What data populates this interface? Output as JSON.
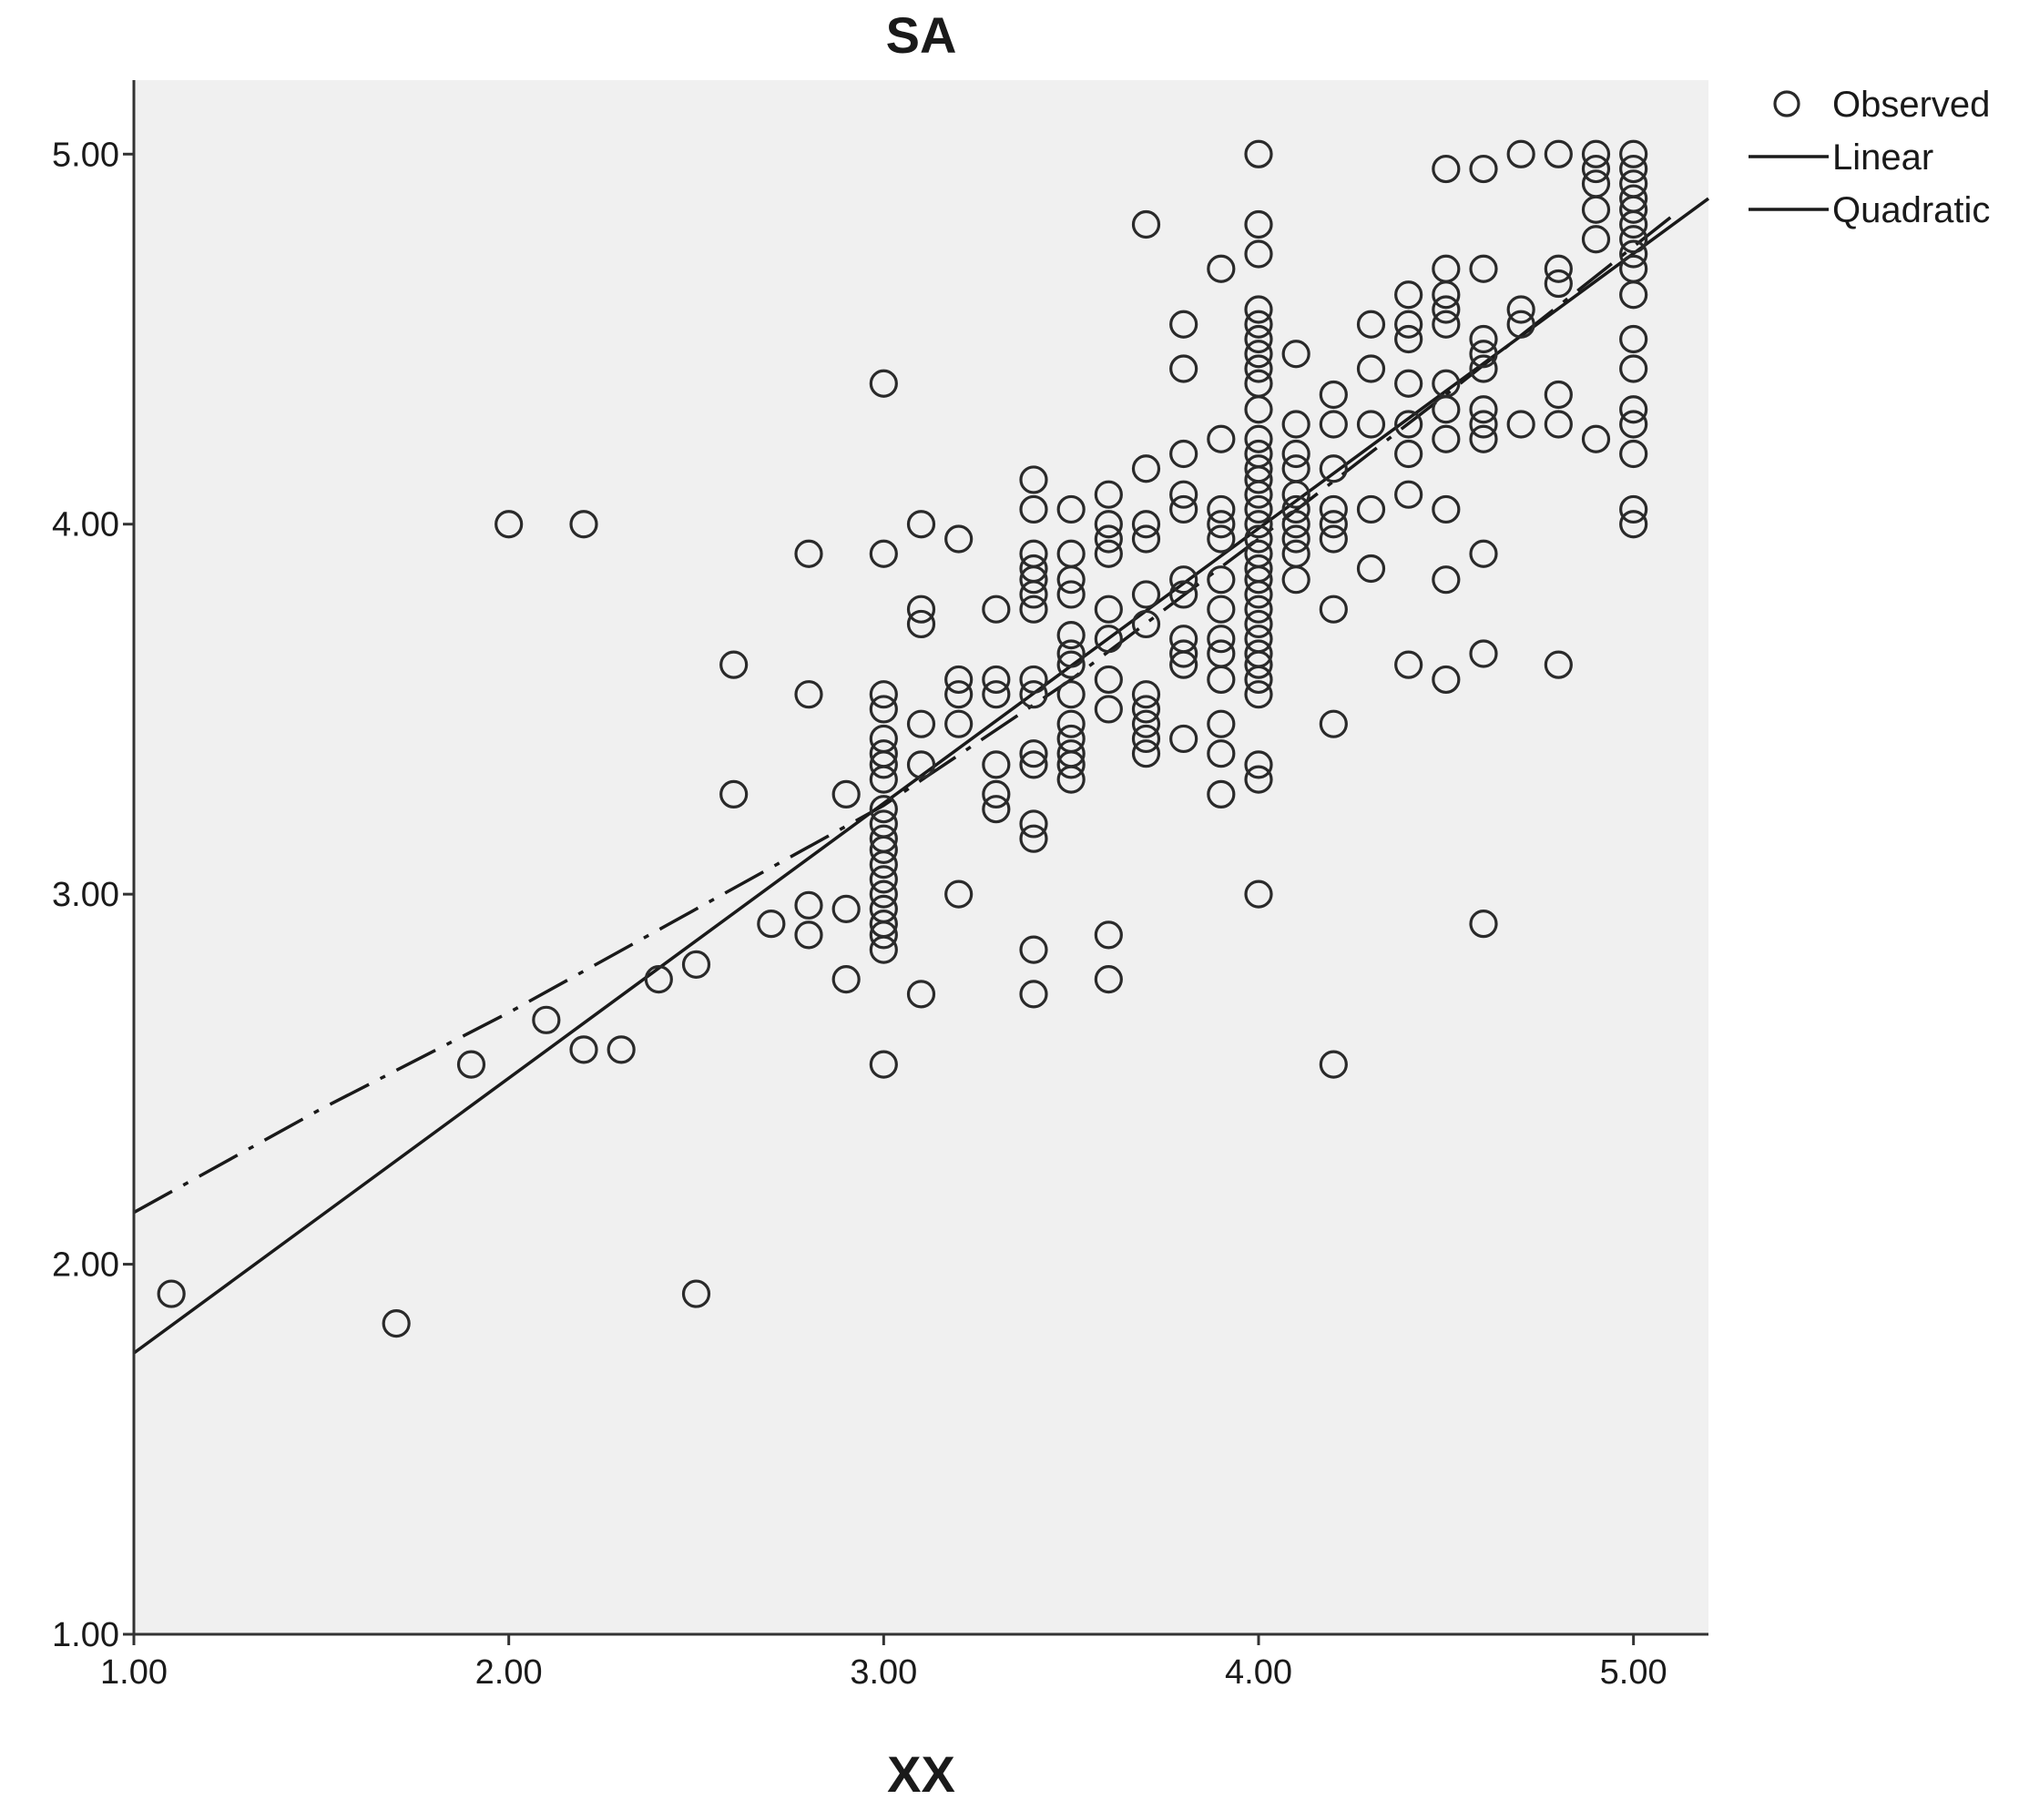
{
  "chart_data": {
    "type": "scatter",
    "title": "SA",
    "xlabel": "XX",
    "ylabel": "",
    "xlim": [
      1.0,
      5.2
    ],
    "ylim": [
      1.0,
      5.2
    ],
    "xticks": [
      "1.00",
      "2.00",
      "3.00",
      "4.00",
      "5.00"
    ],
    "yticks": [
      "1.00",
      "2.00",
      "3.00",
      "4.00",
      "5.00"
    ],
    "xtick_values": [
      1,
      2,
      3,
      4,
      5
    ],
    "ytick_values": [
      1,
      2,
      3,
      4,
      5
    ],
    "grid": false,
    "background_color": "#f0f0f0",
    "legend_position": "top-right, outside plot",
    "legend": [
      {
        "label": "Observed",
        "marker": "circle"
      },
      {
        "label": "Linear",
        "style": "solid"
      },
      {
        "label": "Quadratic",
        "style": "dash-dot"
      }
    ],
    "series": [
      {
        "name": "Observed",
        "points": [
          [
            1.1,
            1.92
          ],
          [
            1.7,
            1.84
          ],
          [
            1.9,
            2.54
          ],
          [
            2.0,
            4.0
          ],
          [
            2.1,
            2.66
          ],
          [
            2.2,
            2.58
          ],
          [
            2.2,
            4.0
          ],
          [
            2.3,
            2.58
          ],
          [
            2.4,
            2.77
          ],
          [
            2.5,
            2.81
          ],
          [
            2.5,
            1.92
          ],
          [
            2.6,
            3.62
          ],
          [
            2.6,
            3.27
          ],
          [
            2.7,
            2.92
          ],
          [
            2.8,
            2.97
          ],
          [
            2.8,
            2.89
          ],
          [
            2.8,
            3.54
          ],
          [
            2.8,
            3.92
          ],
          [
            2.9,
            3.27
          ],
          [
            2.9,
            2.96
          ],
          [
            2.9,
            2.77
          ],
          [
            3.0,
            4.38
          ],
          [
            3.0,
            3.92
          ],
          [
            3.0,
            3.54
          ],
          [
            3.0,
            3.5
          ],
          [
            3.0,
            3.42
          ],
          [
            3.0,
            3.38
          ],
          [
            3.0,
            3.35
          ],
          [
            3.0,
            3.31
          ],
          [
            3.0,
            3.23
          ],
          [
            3.0,
            3.19
          ],
          [
            3.0,
            3.15
          ],
          [
            3.0,
            3.12
          ],
          [
            3.0,
            3.08
          ],
          [
            3.0,
            3.04
          ],
          [
            3.0,
            3.0
          ],
          [
            3.0,
            2.96
          ],
          [
            3.0,
            2.92
          ],
          [
            3.0,
            2.89
          ],
          [
            3.0,
            2.85
          ],
          [
            3.0,
            2.54
          ],
          [
            3.1,
            4.0
          ],
          [
            3.1,
            3.77
          ],
          [
            3.1,
            3.73
          ],
          [
            3.1,
            3.46
          ],
          [
            3.1,
            3.35
          ],
          [
            3.1,
            2.73
          ],
          [
            3.2,
            3.96
          ],
          [
            3.2,
            3.58
          ],
          [
            3.2,
            3.54
          ],
          [
            3.2,
            3.46
          ],
          [
            3.2,
            3.0
          ],
          [
            3.3,
            3.77
          ],
          [
            3.3,
            3.58
          ],
          [
            3.3,
            3.54
          ],
          [
            3.3,
            3.35
          ],
          [
            3.3,
            3.27
          ],
          [
            3.3,
            3.23
          ],
          [
            3.4,
            4.12
          ],
          [
            3.4,
            4.04
          ],
          [
            3.4,
            3.92
          ],
          [
            3.4,
            3.88
          ],
          [
            3.4,
            3.85
          ],
          [
            3.4,
            3.81
          ],
          [
            3.4,
            3.77
          ],
          [
            3.4,
            3.58
          ],
          [
            3.4,
            3.54
          ],
          [
            3.4,
            3.38
          ],
          [
            3.4,
            3.35
          ],
          [
            3.4,
            3.19
          ],
          [
            3.4,
            3.15
          ],
          [
            3.4,
            2.85
          ],
          [
            3.4,
            2.73
          ],
          [
            3.5,
            4.04
          ],
          [
            3.5,
            3.92
          ],
          [
            3.5,
            3.85
          ],
          [
            3.5,
            3.81
          ],
          [
            3.5,
            3.7
          ],
          [
            3.5,
            3.65
          ],
          [
            3.5,
            3.62
          ],
          [
            3.5,
            3.54
          ],
          [
            3.5,
            3.46
          ],
          [
            3.5,
            3.42
          ],
          [
            3.5,
            3.38
          ],
          [
            3.5,
            3.35
          ],
          [
            3.5,
            3.31
          ],
          [
            3.6,
            4.08
          ],
          [
            3.6,
            4.0
          ],
          [
            3.6,
            3.96
          ],
          [
            3.6,
            3.92
          ],
          [
            3.6,
            3.77
          ],
          [
            3.6,
            3.69
          ],
          [
            3.6,
            3.58
          ],
          [
            3.6,
            3.5
          ],
          [
            3.6,
            2.89
          ],
          [
            3.6,
            2.77
          ],
          [
            3.7,
            4.81
          ],
          [
            3.7,
            4.15
          ],
          [
            3.7,
            4.0
          ],
          [
            3.7,
            3.96
          ],
          [
            3.7,
            3.81
          ],
          [
            3.7,
            3.73
          ],
          [
            3.7,
            3.54
          ],
          [
            3.7,
            3.5
          ],
          [
            3.7,
            3.46
          ],
          [
            3.7,
            3.42
          ],
          [
            3.7,
            3.38
          ],
          [
            3.8,
            4.54
          ],
          [
            3.8,
            4.42
          ],
          [
            3.8,
            4.19
          ],
          [
            3.8,
            4.08
          ],
          [
            3.8,
            4.04
          ],
          [
            3.8,
            3.85
          ],
          [
            3.8,
            3.81
          ],
          [
            3.8,
            3.69
          ],
          [
            3.8,
            3.65
          ],
          [
            3.8,
            3.62
          ],
          [
            3.8,
            3.42
          ],
          [
            3.9,
            4.69
          ],
          [
            3.9,
            4.23
          ],
          [
            3.9,
            4.04
          ],
          [
            3.9,
            4.0
          ],
          [
            3.9,
            3.96
          ],
          [
            3.9,
            3.85
          ],
          [
            3.9,
            3.77
          ],
          [
            3.9,
            3.69
          ],
          [
            3.9,
            3.65
          ],
          [
            3.9,
            3.58
          ],
          [
            3.9,
            3.46
          ],
          [
            3.9,
            3.38
          ],
          [
            3.9,
            3.27
          ],
          [
            4.0,
            5.0
          ],
          [
            4.0,
            4.81
          ],
          [
            4.0,
            4.73
          ],
          [
            4.0,
            4.58
          ],
          [
            4.0,
            4.54
          ],
          [
            4.0,
            4.5
          ],
          [
            4.0,
            4.46
          ],
          [
            4.0,
            4.42
          ],
          [
            4.0,
            4.38
          ],
          [
            4.0,
            4.31
          ],
          [
            4.0,
            4.23
          ],
          [
            4.0,
            4.19
          ],
          [
            4.0,
            4.15
          ],
          [
            4.0,
            4.12
          ],
          [
            4.0,
            4.08
          ],
          [
            4.0,
            4.04
          ],
          [
            4.0,
            4.0
          ],
          [
            4.0,
            3.96
          ],
          [
            4.0,
            3.92
          ],
          [
            4.0,
            3.88
          ],
          [
            4.0,
            3.85
          ],
          [
            4.0,
            3.81
          ],
          [
            4.0,
            3.77
          ],
          [
            4.0,
            3.73
          ],
          [
            4.0,
            3.69
          ],
          [
            4.0,
            3.65
          ],
          [
            4.0,
            3.62
          ],
          [
            4.0,
            3.58
          ],
          [
            4.0,
            3.54
          ],
          [
            4.0,
            3.35
          ],
          [
            4.0,
            3.31
          ],
          [
            4.0,
            3.0
          ],
          [
            4.1,
            4.46
          ],
          [
            4.1,
            4.27
          ],
          [
            4.1,
            4.19
          ],
          [
            4.1,
            4.15
          ],
          [
            4.1,
            4.08
          ],
          [
            4.1,
            4.04
          ],
          [
            4.1,
            4.0
          ],
          [
            4.1,
            3.96
          ],
          [
            4.1,
            3.92
          ],
          [
            4.1,
            3.85
          ],
          [
            4.2,
            4.35
          ],
          [
            4.2,
            4.27
          ],
          [
            4.2,
            4.15
          ],
          [
            4.2,
            4.04
          ],
          [
            4.2,
            4.0
          ],
          [
            4.2,
            3.96
          ],
          [
            4.2,
            3.77
          ],
          [
            4.2,
            3.46
          ],
          [
            4.2,
            2.54
          ],
          [
            4.3,
            4.54
          ],
          [
            4.3,
            4.42
          ],
          [
            4.3,
            4.27
          ],
          [
            4.3,
            4.04
          ],
          [
            4.3,
            3.88
          ],
          [
            4.4,
            4.62
          ],
          [
            4.4,
            4.54
          ],
          [
            4.4,
            4.5
          ],
          [
            4.4,
            4.38
          ],
          [
            4.4,
            4.27
          ],
          [
            4.4,
            4.19
          ],
          [
            4.4,
            4.08
          ],
          [
            4.4,
            3.62
          ],
          [
            4.5,
            4.96
          ],
          [
            4.5,
            4.69
          ],
          [
            4.5,
            4.62
          ],
          [
            4.5,
            4.58
          ],
          [
            4.5,
            4.54
          ],
          [
            4.5,
            4.38
          ],
          [
            4.5,
            4.31
          ],
          [
            4.5,
            4.23
          ],
          [
            4.5,
            4.04
          ],
          [
            4.5,
            3.85
          ],
          [
            4.5,
            3.58
          ],
          [
            4.6,
            4.96
          ],
          [
            4.6,
            4.69
          ],
          [
            4.6,
            4.5
          ],
          [
            4.6,
            4.46
          ],
          [
            4.6,
            4.42
          ],
          [
            4.6,
            4.31
          ],
          [
            4.6,
            4.27
          ],
          [
            4.6,
            4.23
          ],
          [
            4.6,
            3.92
          ],
          [
            4.6,
            3.65
          ],
          [
            4.6,
            2.92
          ],
          [
            4.7,
            5.0
          ],
          [
            4.7,
            4.58
          ],
          [
            4.7,
            4.54
          ],
          [
            4.7,
            4.27
          ],
          [
            4.8,
            5.0
          ],
          [
            4.8,
            4.69
          ],
          [
            4.8,
            4.65
          ],
          [
            4.8,
            4.35
          ],
          [
            4.8,
            4.27
          ],
          [
            4.8,
            3.62
          ],
          [
            4.9,
            5.0
          ],
          [
            4.9,
            4.96
          ],
          [
            4.9,
            4.92
          ],
          [
            4.9,
            4.85
          ],
          [
            4.9,
            4.77
          ],
          [
            4.9,
            4.23
          ],
          [
            5.0,
            5.0
          ],
          [
            5.0,
            4.96
          ],
          [
            5.0,
            4.92
          ],
          [
            5.0,
            4.88
          ],
          [
            5.0,
            4.85
          ],
          [
            5.0,
            4.81
          ],
          [
            5.0,
            4.77
          ],
          [
            5.0,
            4.73
          ],
          [
            5.0,
            4.69
          ],
          [
            5.0,
            4.62
          ],
          [
            5.0,
            4.5
          ],
          [
            5.0,
            4.42
          ],
          [
            5.0,
            4.31
          ],
          [
            5.0,
            4.27
          ],
          [
            5.0,
            4.19
          ],
          [
            5.0,
            4.04
          ],
          [
            5.0,
            4.0
          ]
        ]
      },
      {
        "name": "Linear",
        "x": [
          1.0,
          5.2
        ],
        "y": [
          1.76,
          4.88
        ]
      },
      {
        "name": "Quadratic",
        "x": [
          1.0,
          1.5,
          2.0,
          2.5,
          3.0,
          3.5,
          4.0,
          4.5,
          5.1
        ],
        "y": [
          2.14,
          2.42,
          2.68,
          2.96,
          3.24,
          3.58,
          3.96,
          4.35,
          4.83
        ]
      }
    ]
  }
}
